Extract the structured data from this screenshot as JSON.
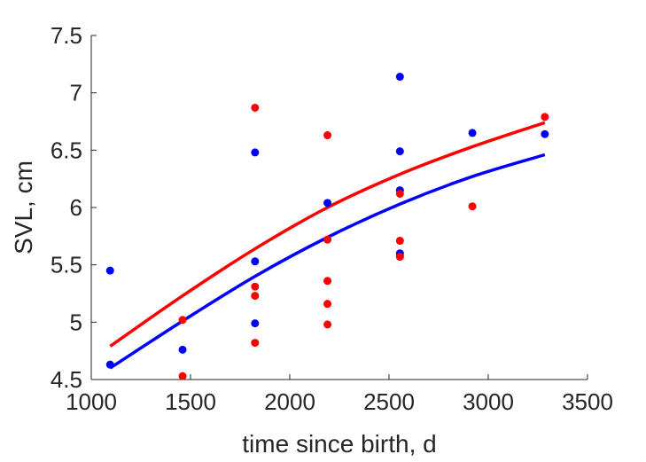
{
  "chart_data": {
    "type": "scatter",
    "title": "",
    "xlabel": "time since birth, d",
    "ylabel": "SVL, cm",
    "xlim": [
      1000,
      3500
    ],
    "ylim": [
      4.5,
      7.5
    ],
    "xticks": [
      1000,
      1500,
      2000,
      2500,
      3000,
      3500
    ],
    "yticks": [
      4.5,
      5,
      5.5,
      6,
      6.5,
      7,
      7.5
    ],
    "xtick_labels": [
      "1000",
      "1500",
      "2000",
      "2500",
      "3000",
      "3500"
    ],
    "ytick_labels": [
      "4.5",
      "5",
      "5.5",
      "6",
      "6.5",
      "7",
      "7.5"
    ],
    "grid": false,
    "series": [
      {
        "color": "#0000ff",
        "points": [
          [
            1095,
            5.45
          ],
          [
            1095,
            4.63
          ],
          [
            1460,
            4.76
          ],
          [
            1825,
            6.48
          ],
          [
            1825,
            5.53
          ],
          [
            1825,
            4.99
          ],
          [
            2190,
            6.04
          ],
          [
            2555,
            7.14
          ],
          [
            2555,
            6.49
          ],
          [
            2555,
            6.15
          ],
          [
            2555,
            5.6
          ],
          [
            2555,
            5.58
          ],
          [
            2920,
            6.65
          ],
          [
            3285,
            6.64
          ]
        ],
        "fit": [
          [
            1095,
            4.6
          ],
          [
            1460,
            5.01
          ],
          [
            1825,
            5.4
          ],
          [
            2190,
            5.74
          ],
          [
            2555,
            6.03
          ],
          [
            2920,
            6.27
          ],
          [
            3285,
            6.46
          ]
        ]
      },
      {
        "color": "#ff0000",
        "points": [
          [
            1460,
            5.02
          ],
          [
            1460,
            4.53
          ],
          [
            1825,
            6.87
          ],
          [
            1825,
            5.31
          ],
          [
            1825,
            5.23
          ],
          [
            1825,
            4.82
          ],
          [
            2190,
            6.63
          ],
          [
            2190,
            5.72
          ],
          [
            2190,
            5.36
          ],
          [
            2190,
            5.16
          ],
          [
            2190,
            4.98
          ],
          [
            2555,
            6.12
          ],
          [
            2555,
            5.71
          ],
          [
            2555,
            5.57
          ],
          [
            2920,
            6.01
          ],
          [
            3285,
            6.79
          ]
        ],
        "fit": [
          [
            1095,
            4.79
          ],
          [
            1460,
            5.23
          ],
          [
            1825,
            5.64
          ],
          [
            2190,
            6.0
          ],
          [
            2555,
            6.29
          ],
          [
            2920,
            6.53
          ],
          [
            3285,
            6.74
          ]
        ]
      }
    ]
  }
}
